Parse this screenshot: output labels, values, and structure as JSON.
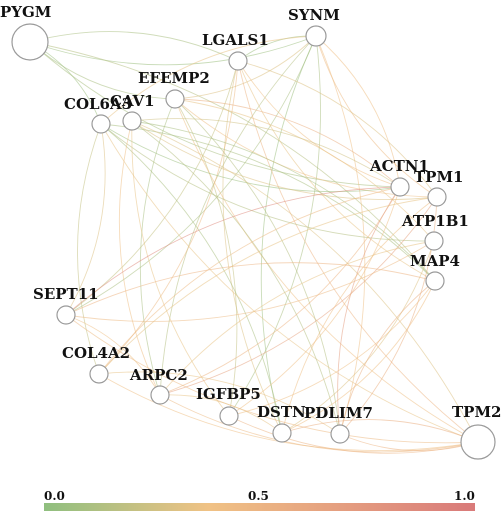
{
  "nodes": [
    {
      "id": "PYGM",
      "label": "PYGM"
    },
    {
      "id": "SYNM",
      "label": "SYNM"
    },
    {
      "id": "LGALS1",
      "label": "LGALS1"
    },
    {
      "id": "EFEMP2",
      "label": "EFEMP2"
    },
    {
      "id": "COL6A3",
      "label": "COL6A3"
    },
    {
      "id": "CAV1",
      "label": "CAV1"
    },
    {
      "id": "ACTN1",
      "label": "ACTN1"
    },
    {
      "id": "TPM1",
      "label": "TPM1"
    },
    {
      "id": "ATP1B1",
      "label": "ATP1B1"
    },
    {
      "id": "MAP4",
      "label": "MAP4"
    },
    {
      "id": "SEPT11",
      "label": "SEPT11"
    },
    {
      "id": "COL4A2",
      "label": "COL4A2"
    },
    {
      "id": "ARPC2",
      "label": "ARPC2"
    },
    {
      "id": "IGFBP5",
      "label": "IGFBP5"
    },
    {
      "id": "DSTN",
      "label": "DSTN"
    },
    {
      "id": "PDLIM7",
      "label": "PDLIM7"
    },
    {
      "id": "TPM2",
      "label": "TPM2"
    }
  ],
  "edges": [
    {
      "source": "PYGM",
      "target": "SYNM",
      "weight": 0.05
    },
    {
      "source": "PYGM",
      "target": "LGALS1",
      "weight": 0.1
    },
    {
      "source": "PYGM",
      "target": "EFEMP2",
      "weight": 0.1
    },
    {
      "source": "PYGM",
      "target": "COL6A3",
      "weight": 0.05
    },
    {
      "source": "PYGM",
      "target": "ACTN1",
      "weight": 0.1
    },
    {
      "source": "PYGM",
      "target": "MAP4",
      "weight": 0.15
    },
    {
      "source": "SYNM",
      "target": "LGALS1",
      "weight": 0.05
    },
    {
      "source": "SYNM",
      "target": "EFEMP2",
      "weight": 0.3
    },
    {
      "source": "SYNM",
      "target": "COL6A3",
      "weight": 0.35
    },
    {
      "source": "SYNM",
      "target": "ACTN1",
      "weight": 0.4
    },
    {
      "source": "SYNM",
      "target": "TPM1",
      "weight": 0.45
    },
    {
      "source": "SYNM",
      "target": "SEPT11",
      "weight": 0.1
    },
    {
      "source": "SYNM",
      "target": "ARPC2",
      "weight": 0.15
    },
    {
      "source": "SYNM",
      "target": "IGFBP5",
      "weight": 0.1
    },
    {
      "source": "SYNM",
      "target": "DSTN",
      "weight": 0.05
    },
    {
      "source": "SYNM",
      "target": "PDLIM7",
      "weight": 0.4
    },
    {
      "source": "LGALS1",
      "target": "ACTN1",
      "weight": 0.4
    },
    {
      "source": "LGALS1",
      "target": "TPM1",
      "weight": 0.3
    },
    {
      "source": "LGALS1",
      "target": "MAP4",
      "weight": 0.35
    },
    {
      "source": "LGALS1",
      "target": "COL4A2",
      "weight": 0.45
    },
    {
      "source": "LGALS1",
      "target": "TPM2",
      "weight": 0.5
    },
    {
      "source": "LGALS1",
      "target": "SEPT11",
      "weight": 0.2
    },
    {
      "source": "LGALS1",
      "target": "DSTN",
      "weight": 0.3
    },
    {
      "source": "EFEMP2",
      "target": "ACTN1",
      "weight": 0.55
    },
    {
      "source": "EFEMP2",
      "target": "TPM1",
      "weight": 0.4
    },
    {
      "source": "EFEMP2",
      "target": "ATP1B1",
      "weight": 0.35
    },
    {
      "source": "EFEMP2",
      "target": "ARPC2",
      "weight": 0.1
    },
    {
      "source": "EFEMP2",
      "target": "IGFBP5",
      "weight": 0.2
    },
    {
      "source": "EFEMP2",
      "target": "TPM2",
      "weight": 0.4
    },
    {
      "source": "EFEMP2",
      "target": "PDLIM7",
      "weight": 0.15
    },
    {
      "source": "COL6A3",
      "target": "ACTN1",
      "weight": 0.05
    },
    {
      "source": "COL6A3",
      "target": "MAP4",
      "weight": 0.1
    },
    {
      "source": "COL6A3",
      "target": "ATP1B1",
      "weight": 0.15
    },
    {
      "source": "COL6A3",
      "target": "SEPT11",
      "weight": 0.3
    },
    {
      "source": "COL6A3",
      "target": "COL4A2",
      "weight": 0.2
    },
    {
      "source": "COL6A3",
      "target": "DSTN",
      "weight": 0.1
    },
    {
      "source": "COL6A3",
      "target": "TPM2",
      "weight": 0.35
    },
    {
      "source": "CAV1",
      "target": "ACTN1",
      "weight": 0.25
    },
    {
      "source": "CAV1",
      "target": "TPM1",
      "weight": 0.3
    },
    {
      "source": "CAV1",
      "target": "MAP4",
      "weight": 0.1
    },
    {
      "source": "CAV1",
      "target": "ARPC2",
      "weight": 0.4
    },
    {
      "source": "CAV1",
      "target": "PDLIM7",
      "weight": 0.15
    },
    {
      "source": "CAV1",
      "target": "IGFBP5",
      "weight": 0.35
    },
    {
      "source": "CAV1",
      "target": "TPM2",
      "weight": 0.3
    },
    {
      "source": "ACTN1",
      "target": "SEPT11",
      "weight": 0.85
    },
    {
      "source": "ACTN1",
      "target": "ARPC2",
      "weight": 0.5
    },
    {
      "source": "ACTN1",
      "target": "PDLIM7",
      "weight": 0.7
    },
    {
      "source": "ACTN1",
      "target": "IGFBP5",
      "weight": 0.4
    },
    {
      "source": "ACTN1",
      "target": "COL4A2",
      "weight": 0.45
    },
    {
      "source": "TPM1",
      "target": "ARPC2",
      "weight": 0.65
    },
    {
      "source": "TPM1",
      "target": "DSTN",
      "weight": 0.4
    },
    {
      "source": "TPM1",
      "target": "PDLIM7",
      "weight": 0.55
    },
    {
      "source": "TPM1",
      "target": "COL4A2",
      "weight": 0.35
    },
    {
      "source": "ATP1B1",
      "target": "SEPT11",
      "weight": 0.45
    },
    {
      "source": "ATP1B1",
      "target": "ARPC2",
      "weight": 0.35
    },
    {
      "source": "ATP1B1",
      "target": "DSTN",
      "weight": 0.3
    },
    {
      "source": "MAP4",
      "target": "SEPT11",
      "weight": 0.5
    },
    {
      "source": "MAP4",
      "target": "IGFBP5",
      "weight": 0.4
    },
    {
      "source": "MAP4",
      "target": "PDLIM7",
      "weight": 0.55
    },
    {
      "source": "MAP4",
      "target": "DSTN",
      "weight": 0.4
    },
    {
      "source": "SEPT11",
      "target": "TPM2",
      "weight": 0.45
    },
    {
      "source": "SEPT11",
      "target": "ARPC2",
      "weight": 0.4
    },
    {
      "source": "COL4A2",
      "target": "TPM2",
      "weight": 0.4
    },
    {
      "source": "COL4A2",
      "target": "PDLIM7",
      "weight": 0.35
    },
    {
      "source": "ARPC2",
      "target": "TPM2",
      "weight": 0.45
    },
    {
      "source": "ARPC2",
      "target": "DSTN",
      "weight": 0.35
    },
    {
      "source": "IGFBP5",
      "target": "TPM2",
      "weight": 0.5
    },
    {
      "source": "DSTN",
      "target": "TPM2",
      "weight": 0.55
    },
    {
      "source": "PDLIM7",
      "target": "TPM2",
      "weight": 0.5
    }
  ],
  "color_scale": {
    "min_label": "0.0",
    "mid_label": "0.5",
    "max_label": "1.0",
    "low_color": "#8fbf7f",
    "mid_color": "#f0c285",
    "high_color": "#d97a7a"
  }
}
